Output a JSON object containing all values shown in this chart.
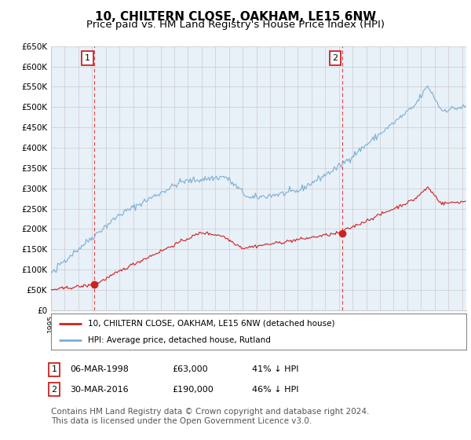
{
  "title": "10, CHILTERN CLOSE, OAKHAM, LE15 6NW",
  "subtitle": "Price paid vs. HM Land Registry's House Price Index (HPI)",
  "title_fontsize": 11,
  "subtitle_fontsize": 9.5,
  "ylabel_ticks": [
    "£0",
    "£50K",
    "£100K",
    "£150K",
    "£200K",
    "£250K",
    "£300K",
    "£350K",
    "£400K",
    "£450K",
    "£500K",
    "£550K",
    "£600K",
    "£650K"
  ],
  "ylim": [
    0,
    650000
  ],
  "xlim_start": 1995.0,
  "xlim_end": 2025.3,
  "hpi_color": "#7bafd4",
  "hpi_fill_color": "#dde9f5",
  "sale_color": "#cc2222",
  "grid_color": "#cccccc",
  "background_color": "#ffffff",
  "plot_bg_color": "#e8f0f8",
  "sale1_x": 1998.18,
  "sale1_y": 63000,
  "sale1_label": "1",
  "sale2_x": 2016.24,
  "sale2_y": 190000,
  "sale2_label": "2",
  "legend_entry1": "10, CHILTERN CLOSE, OAKHAM, LE15 6NW (detached house)",
  "legend_entry2": "HPI: Average price, detached house, Rutland",
  "table_row1": [
    "1",
    "06-MAR-1998",
    "£63,000",
    "41% ↓ HPI"
  ],
  "table_row2": [
    "2",
    "30-MAR-2016",
    "£190,000",
    "46% ↓ HPI"
  ],
  "footer": "Contains HM Land Registry data © Crown copyright and database right 2024.\nThis data is licensed under the Open Government Licence v3.0.",
  "footnote_fontsize": 7.5
}
